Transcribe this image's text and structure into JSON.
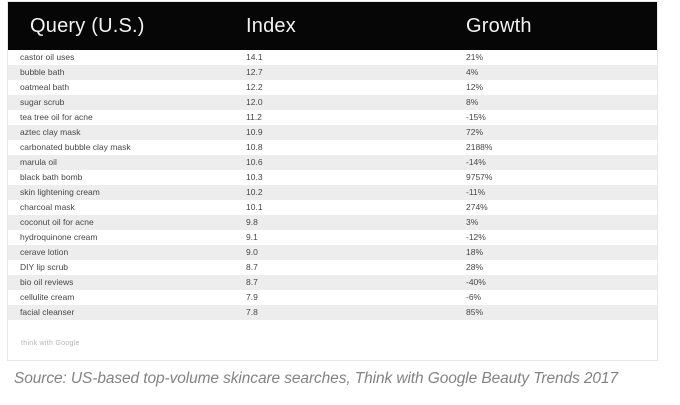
{
  "chart_data": {
    "type": "table",
    "columns": [
      "Query (U.S.)",
      "Index",
      "Growth"
    ],
    "rows": [
      {
        "query": "castor oil uses",
        "index": "14.1",
        "growth": "21%"
      },
      {
        "query": "bubble bath",
        "index": "12.7",
        "growth": "4%"
      },
      {
        "query": "oatmeal bath",
        "index": "12.2",
        "growth": "12%"
      },
      {
        "query": "sugar scrub",
        "index": "12.0",
        "growth": "8%"
      },
      {
        "query": "tea tree oil for acne",
        "index": "11.2",
        "growth": "-15%"
      },
      {
        "query": "aztec clay mask",
        "index": "10.9",
        "growth": "72%"
      },
      {
        "query": "carbonated bubble clay mask",
        "index": "10.8",
        "growth": "2188%"
      },
      {
        "query": "marula oil",
        "index": "10.6",
        "growth": "-14%"
      },
      {
        "query": "black bath bomb",
        "index": "10.3",
        "growth": "9757%"
      },
      {
        "query": "skin lightening cream",
        "index": "10.2",
        "growth": "-11%"
      },
      {
        "query": "charcoal mask",
        "index": "10.1",
        "growth": "274%"
      },
      {
        "query": "coconut oil for acne",
        "index": "9.8",
        "growth": "3%"
      },
      {
        "query": "hydroquinone cream",
        "index": "9.1",
        "growth": "-12%"
      },
      {
        "query": "cerave lotion",
        "index": "9.0",
        "growth": "18%"
      },
      {
        "query": "DIY lip scrub",
        "index": "8.7",
        "growth": "28%"
      },
      {
        "query": "bio oil reviews",
        "index": "8.7",
        "growth": "-40%"
      },
      {
        "query": "cellulite cream",
        "index": "7.9",
        "growth": "-6%"
      },
      {
        "query": "facial cleanser",
        "index": "7.8",
        "growth": "85%"
      }
    ],
    "legend_position": "none",
    "grid": "zebra-stripes"
  },
  "watermark": "think with Google",
  "source": "Source: US-based top-volume skincare searches, Think with Google Beauty Trends 2017",
  "colors": {
    "header_bg": "#060606",
    "header_text": "#f2f2f2",
    "row_alt_bg": "#ededed",
    "row_text": "#474747",
    "watermark_text": "#b4b4b4",
    "source_text": "#838383"
  }
}
